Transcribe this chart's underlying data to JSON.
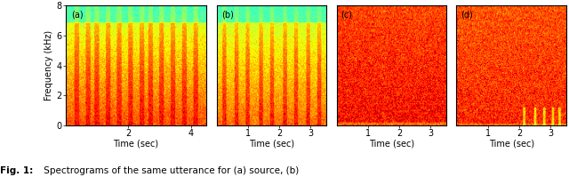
{
  "fig_width": 6.4,
  "fig_height": 1.99,
  "dpi": 100,
  "panels": [
    {
      "label": "(a)",
      "xlim": [
        0,
        4.5
      ],
      "xticks": [
        2,
        4
      ],
      "xlabel": "Time (sec)",
      "style": "source",
      "duration": 4.5
    },
    {
      "label": "(b)",
      "xlim": [
        0,
        3.5
      ],
      "xticks": [
        1,
        2,
        3
      ],
      "xlabel": "Time (sec)",
      "style": "converted",
      "duration": 3.5
    },
    {
      "label": "(c)",
      "xlim": [
        0,
        3.5
      ],
      "xticks": [
        1,
        2,
        3
      ],
      "xlabel": "Time (sec)",
      "style": "noisy",
      "duration": 3.5
    },
    {
      "label": "(d)",
      "xlim": [
        0,
        3.5
      ],
      "xticks": [
        1,
        2,
        3
      ],
      "xlabel": "Time (sec)",
      "style": "converted_noisy",
      "duration": 3.5
    }
  ],
  "ylim": [
    0,
    8
  ],
  "yticks": [
    0,
    2,
    4,
    6,
    8
  ],
  "ylabel": "Frequency (kHz)",
  "background_color": "#ffffff",
  "fig_caption_bold": "Fig. 1:",
  "fig_caption_rest": " Spectrograms of the same utterance for (a) source, (b)"
}
